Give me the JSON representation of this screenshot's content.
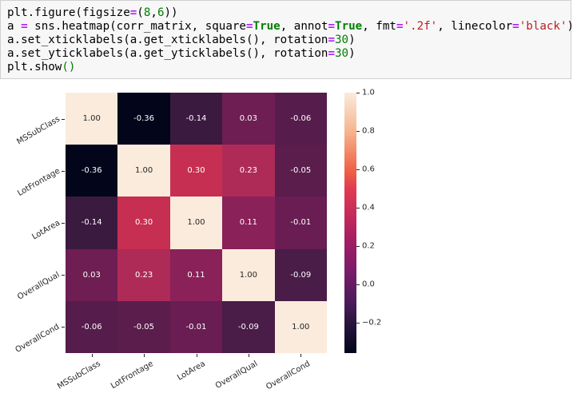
{
  "code_cell": {
    "lines": [
      "plt.figure(figsize=(8,6))",
      "a = sns.heatmap(corr_matrix, square=True, annot=True, fmt='.2f', linecolor='black')",
      "a.set_xticklabels(a.get_xticklabels(), rotation=30)",
      "a.set_yticklabels(a.get_yticklabels(), rotation=30)",
      "plt.show()"
    ]
  },
  "chart_data": {
    "type": "heatmap",
    "title": "",
    "xlabel": "",
    "ylabel": "",
    "x_labels": [
      "MSSubClass",
      "LotFrontage",
      "LotArea",
      "OverallQual",
      "OverallCond"
    ],
    "y_labels": [
      "MSSubClass",
      "LotFrontage",
      "LotArea",
      "OverallQual",
      "OverallCond"
    ],
    "values": [
      [
        1.0,
        -0.36,
        -0.14,
        0.03,
        -0.06
      ],
      [
        -0.36,
        1.0,
        0.3,
        0.23,
        -0.05
      ],
      [
        -0.14,
        0.3,
        1.0,
        0.11,
        -0.01
      ],
      [
        0.03,
        0.23,
        0.11,
        1.0,
        -0.09
      ],
      [
        -0.06,
        -0.05,
        -0.01,
        -0.09,
        1.0
      ]
    ],
    "annotations": [
      [
        "1.00",
        "-0.36",
        "-0.14",
        "0.03",
        "-0.06"
      ],
      [
        "-0.36",
        "1.00",
        "0.30",
        "0.23",
        "-0.05"
      ],
      [
        "-0.14",
        "0.30",
        "1.00",
        "0.11",
        "-0.01"
      ],
      [
        "0.03",
        "0.23",
        "0.11",
        "1.00",
        "-0.09"
      ],
      [
        "-0.06",
        "-0.05",
        "-0.01",
        "-0.09",
        "1.00"
      ]
    ],
    "colormap": "rocket",
    "colorbar": {
      "range": [
        -0.36,
        1.0
      ],
      "ticks": [
        "1.0",
        "0.8",
        "0.6",
        "0.4",
        "0.2",
        "0.0",
        "−0.2"
      ],
      "tick_values": [
        1.0,
        0.8,
        0.6,
        0.4,
        0.2,
        0.0,
        -0.2
      ]
    },
    "cell_colors": [
      [
        "#faebdd",
        "#03051a",
        "#3b1a40",
        "#6e1e53",
        "#561c4b"
      ],
      [
        "#03051a",
        "#faebdd",
        "#c72f52",
        "#ae2b57",
        "#5a1d4c"
      ],
      [
        "#3b1a40",
        "#c72f52",
        "#faebdd",
        "#8a2159",
        "#691d52"
      ],
      [
        "#6e1e53",
        "#ae2b57",
        "#8a2159",
        "#faebdd",
        "#4a1c48"
      ],
      [
        "#561c4b",
        "#5a1d4c",
        "#691d52",
        "#4a1c48",
        "#faebdd"
      ]
    ]
  }
}
